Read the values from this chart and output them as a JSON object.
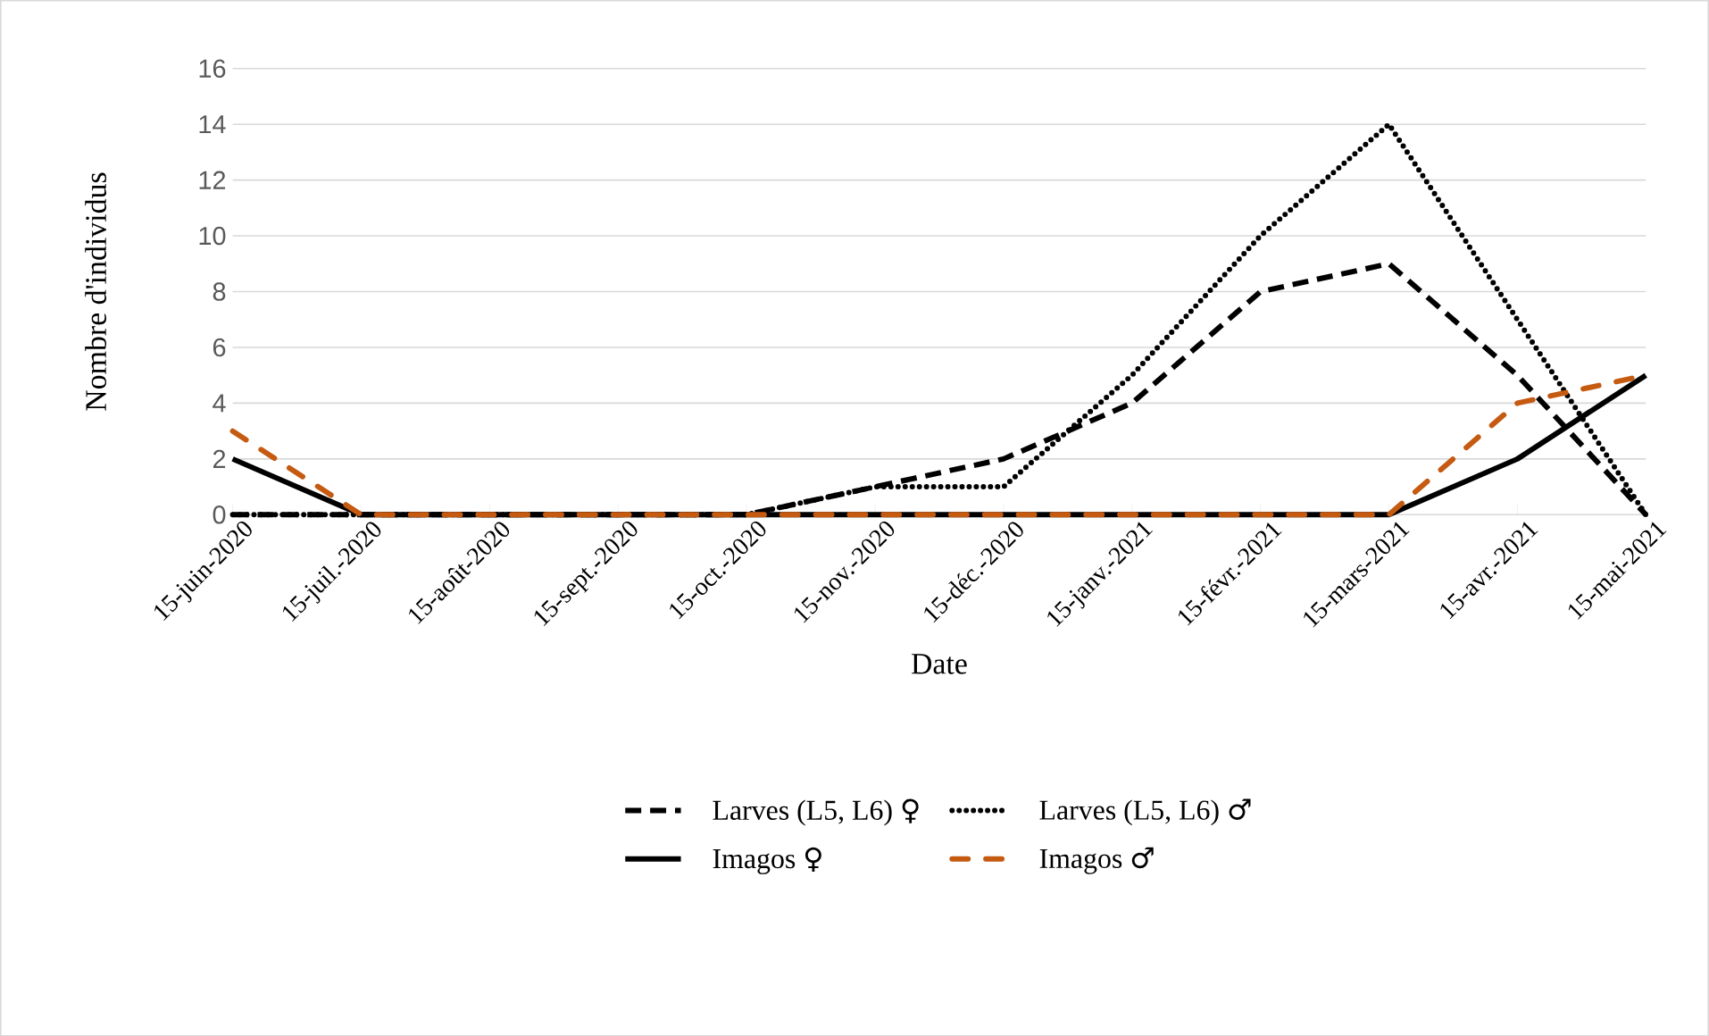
{
  "chart_data": {
    "type": "line",
    "xlabel": "Date",
    "ylabel": "Nombre d'individus",
    "categories": [
      "15-juin-2020",
      "15-juil.-2020",
      "15-août-2020",
      "15-sept.-2020",
      "15-oct.-2020",
      "15-nov.-2020",
      "15-déc.-2020",
      "15-janv.-2021",
      "15-févr.-2021",
      "15-mars-2021",
      "15-avr.-2021",
      "15-mai-2021"
    ],
    "series": [
      {
        "name": "Larves (L5, L6) ♀",
        "color": "#000000",
        "line_style": "dashed",
        "values": [
          0,
          0,
          0,
          0,
          0,
          1,
          2,
          4,
          8,
          9,
          5,
          0
        ]
      },
      {
        "name": "Larves (L5, L6) ♂",
        "color": "#000000",
        "line_style": "dotted",
        "values": [
          0,
          0,
          0,
          0,
          0,
          1,
          1,
          5,
          10,
          14,
          7,
          0
        ]
      },
      {
        "name": "Imagos ♀",
        "color": "#000000",
        "line_style": "solid",
        "values": [
          2,
          0,
          0,
          0,
          0,
          0,
          0,
          0,
          0,
          0,
          2,
          5
        ]
      },
      {
        "name": "Imagos ♂",
        "color": "#c55a11",
        "line_style": "dashdot",
        "values": [
          3,
          0,
          0,
          0,
          0,
          0,
          0,
          0,
          0,
          0,
          4,
          5
        ]
      }
    ],
    "ylim": [
      0,
      16
    ],
    "yticks": [
      0,
      2,
      4,
      6,
      8,
      10,
      12,
      14,
      16
    ],
    "grid": "y",
    "legend": "bottom",
    "marker": "none"
  }
}
